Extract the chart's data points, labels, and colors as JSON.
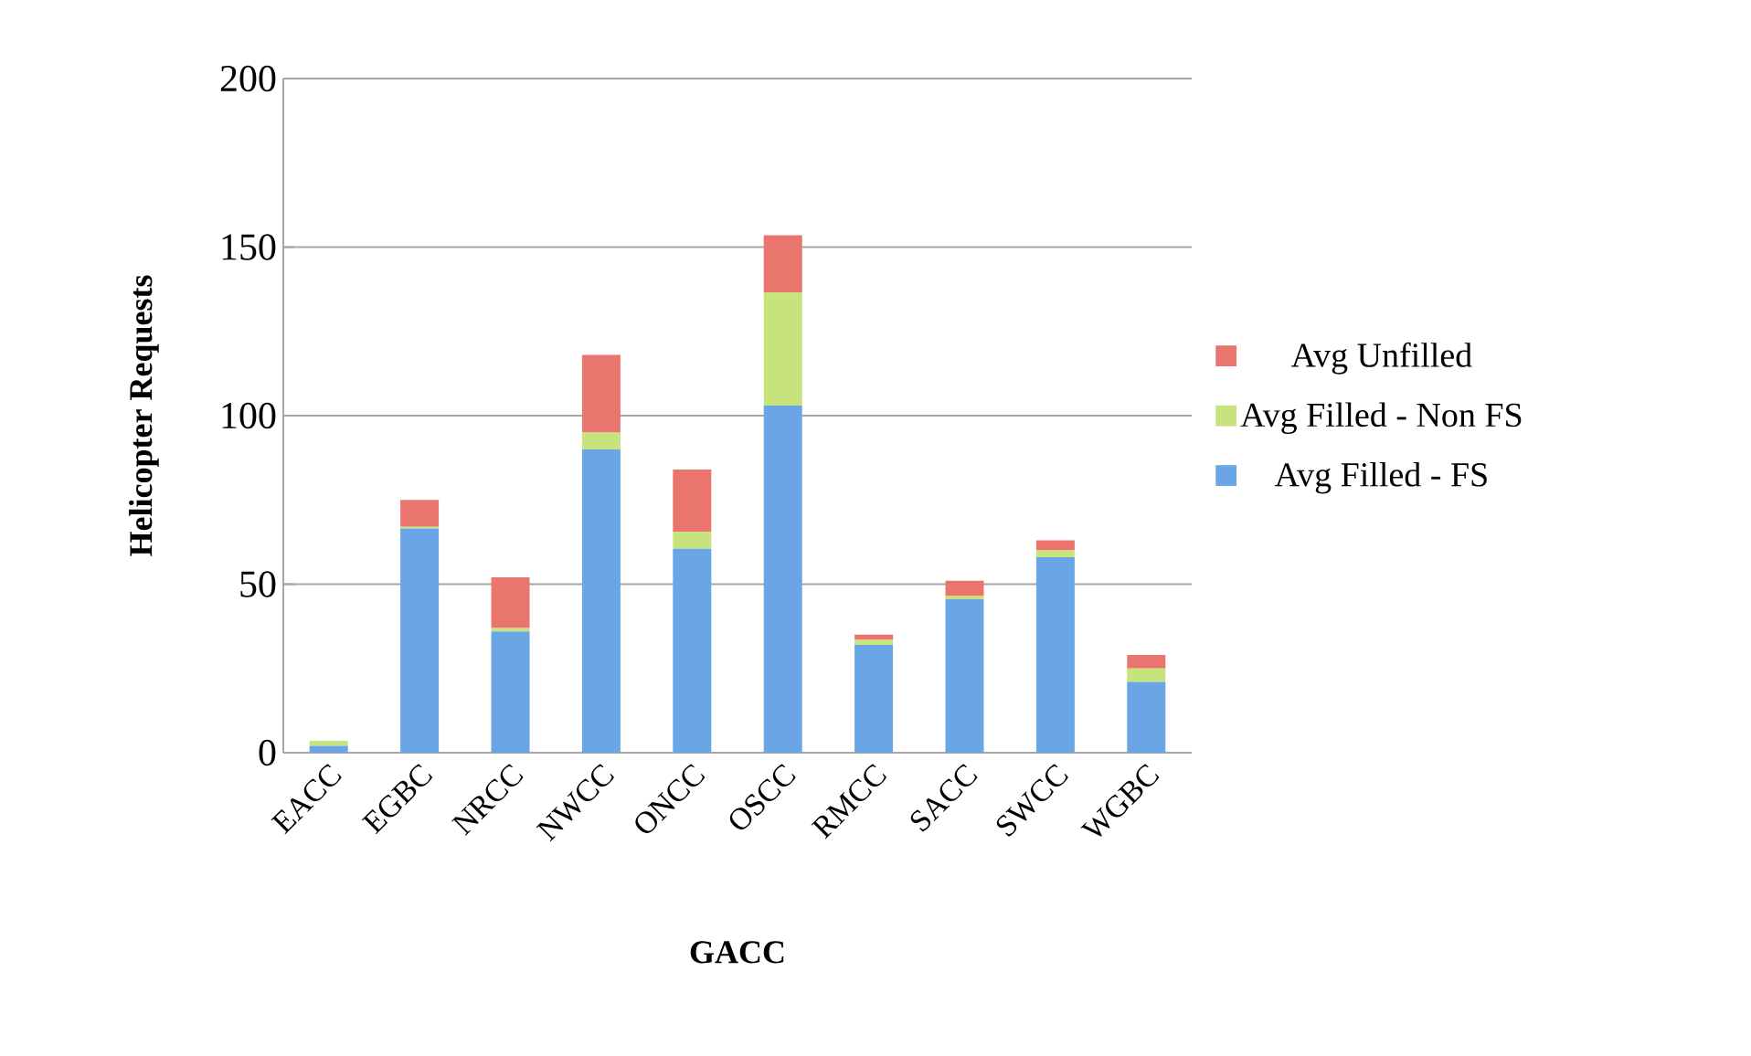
{
  "chart_data": {
    "type": "bar",
    "stacked": true,
    "xlabel": "GACC",
    "ylabel": "Helicopter Requests",
    "categories": [
      "EACC",
      "EGBC",
      "NRCC",
      "NWCC",
      "ONCC",
      "OSCC",
      "RMCC",
      "SACC",
      "SWCC",
      "WGBC"
    ],
    "series": [
      {
        "name": "Avg Filled - FS",
        "color": "#6aa6e6",
        "values": [
          2,
          66.5,
          36,
          90,
          60.5,
          103,
          32,
          45.5,
          58,
          21
        ]
      },
      {
        "name": "Avg Filled - Non FS",
        "color": "#c6e37c",
        "values": [
          1.5,
          0.5,
          1,
          5,
          5,
          33.5,
          1.5,
          1,
          2,
          4
        ]
      },
      {
        "name": "Avg Unfilled",
        "color": "#ea746e",
        "values": [
          0,
          8,
          15,
          23,
          18.5,
          17,
          1.5,
          4.5,
          3,
          4
        ]
      }
    ],
    "ylim": [
      0,
      200
    ],
    "yticks": [
      0,
      50,
      100,
      150,
      200
    ],
    "grid": "y",
    "legend": "right"
  }
}
